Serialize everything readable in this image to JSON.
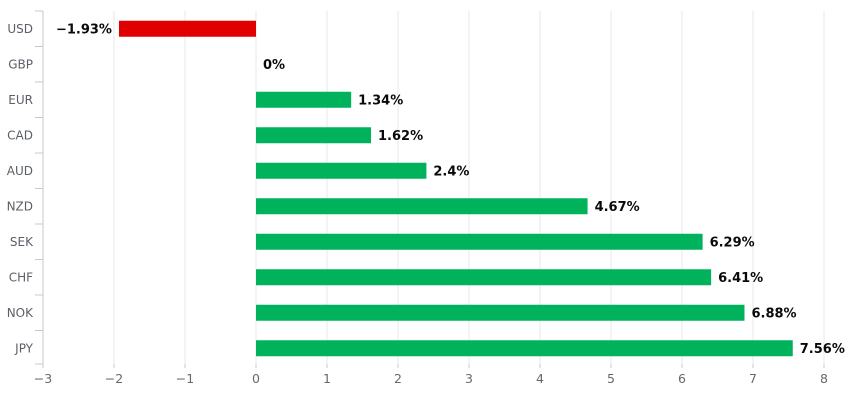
{
  "chart_data": {
    "type": "bar",
    "orientation": "horizontal",
    "title": "",
    "categories": [
      "USD",
      "GBP",
      "EUR",
      "CAD",
      "AUD",
      "NZD",
      "SEK",
      "CHF",
      "NOK",
      "JPY"
    ],
    "values": [
      -1.93,
      0,
      1.34,
      1.62,
      2.4,
      4.67,
      6.29,
      6.41,
      6.88,
      7.56
    ],
    "value_labels": [
      "−1.93%",
      "0%",
      "1.34%",
      "1.62%",
      "2.4%",
      "4.67%",
      "6.29%",
      "6.41%",
      "6.88%",
      "7.56%"
    ],
    "xlabel": "",
    "ylabel": "",
    "xlim": [
      -3,
      8
    ],
    "x_ticks": [
      -3,
      -2,
      -1,
      0,
      1,
      2,
      3,
      4,
      5,
      6,
      7,
      8
    ],
    "x_tick_labels": [
      "−3",
      "−2",
      "−1",
      "0",
      "1",
      "2",
      "3",
      "4",
      "5",
      "6",
      "7",
      "8"
    ],
    "grid": "vertical-only",
    "legend": "none",
    "colors": {
      "bar_positive": "#00b25c",
      "bar_negative": "#e00000",
      "gridline": "#e8e8ea",
      "axis_line": "#c6c9cc",
      "category_text": "#5b5f66",
      "tick_text": "#65696e",
      "value_text": "#0a0a0a",
      "background": "#ffffff"
    }
  }
}
